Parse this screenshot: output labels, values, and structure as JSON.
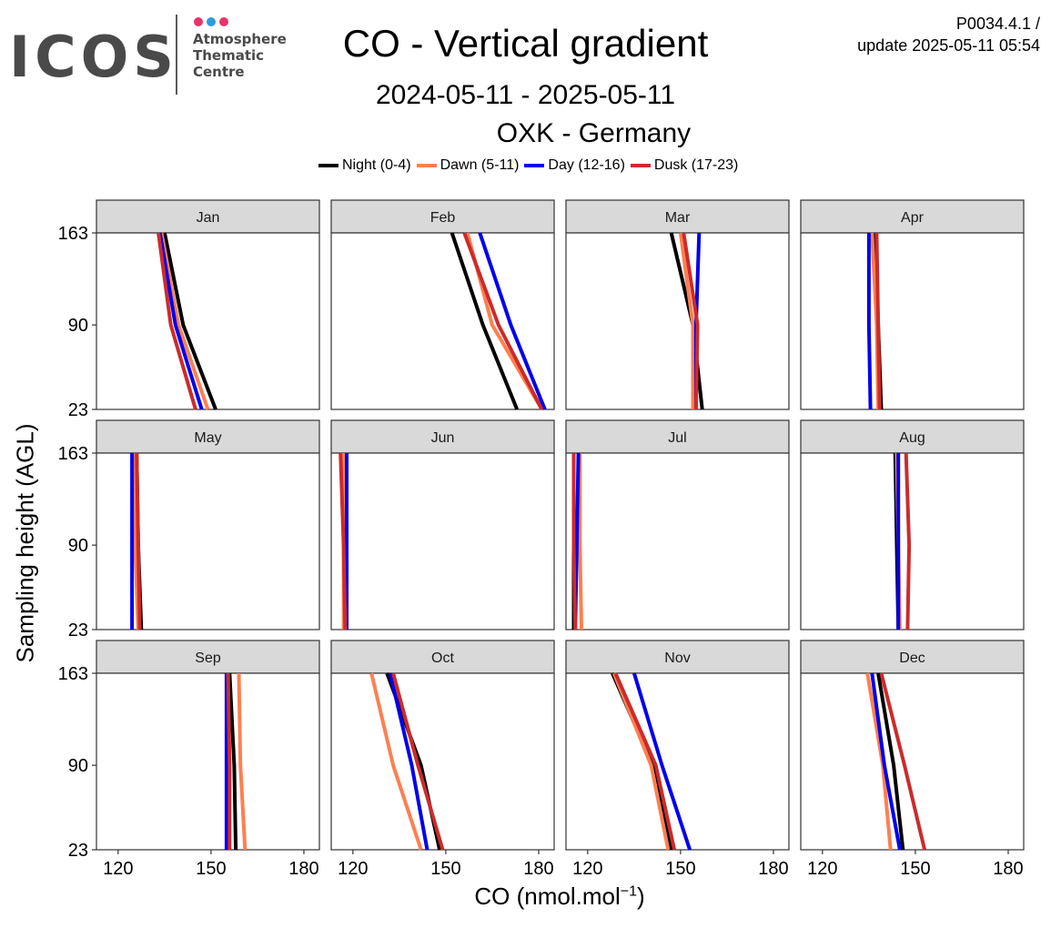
{
  "logo": {
    "wordmark": "ICOS",
    "lines": [
      "Atmosphere",
      "Thematic",
      "Centre"
    ],
    "dot_colors": [
      "#e8336b",
      "#2d9be0",
      "#e8336b"
    ]
  },
  "header": {
    "title": "CO - Vertical gradient",
    "period": "2024-05-11 - 2025-05-11",
    "station": "OXK - Germany",
    "product_id": "P0034.4.1 /",
    "update_label": "update  2025-05-11 05:54"
  },
  "chart_data": {
    "type": "line",
    "xlabel": "CO (nmol.mol",
    "xlabel_sup": "−1",
    "xlabel_close": ")",
    "ylabel": "Sampling height (AGL)",
    "xlim": [
      113,
      185
    ],
    "x_ticks": [
      120,
      150,
      180
    ],
    "heights": [
      23,
      90,
      163
    ],
    "y_ticks": [
      23,
      90,
      163
    ],
    "legend_position": "top",
    "series_names": [
      "Night (0-4)",
      "Dawn (5-11)",
      "Day (12-16)",
      "Dusk (17-23)"
    ],
    "series_colors": [
      "#000000",
      "#ff7f50",
      "#0000ee",
      "#cc2b2b"
    ],
    "panels": [
      {
        "month": "Jan",
        "series": [
          [
            151.5,
            141,
            135
          ],
          [
            149,
            139.5,
            134
          ],
          [
            147,
            138.5,
            133.5
          ],
          [
            145,
            137,
            133
          ]
        ]
      },
      {
        "month": "Feb",
        "series": [
          [
            173,
            162,
            152
          ],
          [
            181,
            165,
            157
          ],
          [
            182,
            171,
            161
          ],
          [
            181,
            167,
            156
          ]
        ]
      },
      {
        "month": "Mar",
        "series": [
          [
            157,
            154,
            147
          ],
          [
            154,
            154,
            150
          ],
          [
            155,
            155,
            156
          ],
          [
            155,
            155.5,
            151
          ]
        ]
      },
      {
        "month": "Apr",
        "series": [
          [
            139,
            138,
            137
          ],
          [
            138,
            137.5,
            136
          ],
          [
            135.5,
            135,
            135
          ],
          [
            138.5,
            138,
            137.5
          ]
        ]
      },
      {
        "month": "May",
        "series": [
          [
            127.5,
            126.5,
            126
          ],
          [
            126.5,
            125.5,
            125
          ],
          [
            124.5,
            124.5,
            124.5
          ],
          [
            127,
            126.5,
            126
          ]
        ]
      },
      {
        "month": "Jun",
        "series": [
          [
            118,
            117.5,
            116.5
          ],
          [
            117,
            117,
            117
          ],
          [
            118,
            118,
            118
          ],
          [
            117.5,
            117,
            116
          ]
        ]
      },
      {
        "month": "Jul",
        "series": [
          [
            115.5,
            115.5,
            115.5
          ],
          [
            118,
            117.5,
            117.5
          ],
          [
            116,
            116.5,
            117
          ],
          [
            116,
            115.5,
            115.5
          ]
        ]
      },
      {
        "month": "Aug",
        "series": [
          [
            144.5,
            144,
            143.5
          ],
          [
            145,
            144.5,
            144
          ],
          [
            144.5,
            144.5,
            144.5
          ],
          [
            147.5,
            148,
            147
          ]
        ]
      },
      {
        "month": "Sep",
        "series": [
          [
            158,
            157.5,
            156
          ],
          [
            161,
            159.5,
            159
          ],
          [
            155,
            155,
            155
          ],
          [
            156,
            156,
            155.5
          ]
        ]
      },
      {
        "month": "Oct",
        "series": [
          [
            148,
            142,
            131
          ],
          [
            142,
            133,
            126
          ],
          [
            144,
            139,
            132
          ],
          [
            149,
            141,
            133
          ]
        ]
      },
      {
        "month": "Nov",
        "series": [
          [
            147,
            141,
            128
          ],
          [
            146,
            140.5,
            128.5
          ],
          [
            153,
            144,
            135
          ],
          [
            148,
            142,
            129
          ]
        ]
      },
      {
        "month": "Dec",
        "series": [
          [
            146,
            143,
            138
          ],
          [
            142,
            139.5,
            134.5
          ],
          [
            145,
            140,
            136
          ],
          [
            153,
            146.5,
            139
          ]
        ]
      }
    ]
  }
}
